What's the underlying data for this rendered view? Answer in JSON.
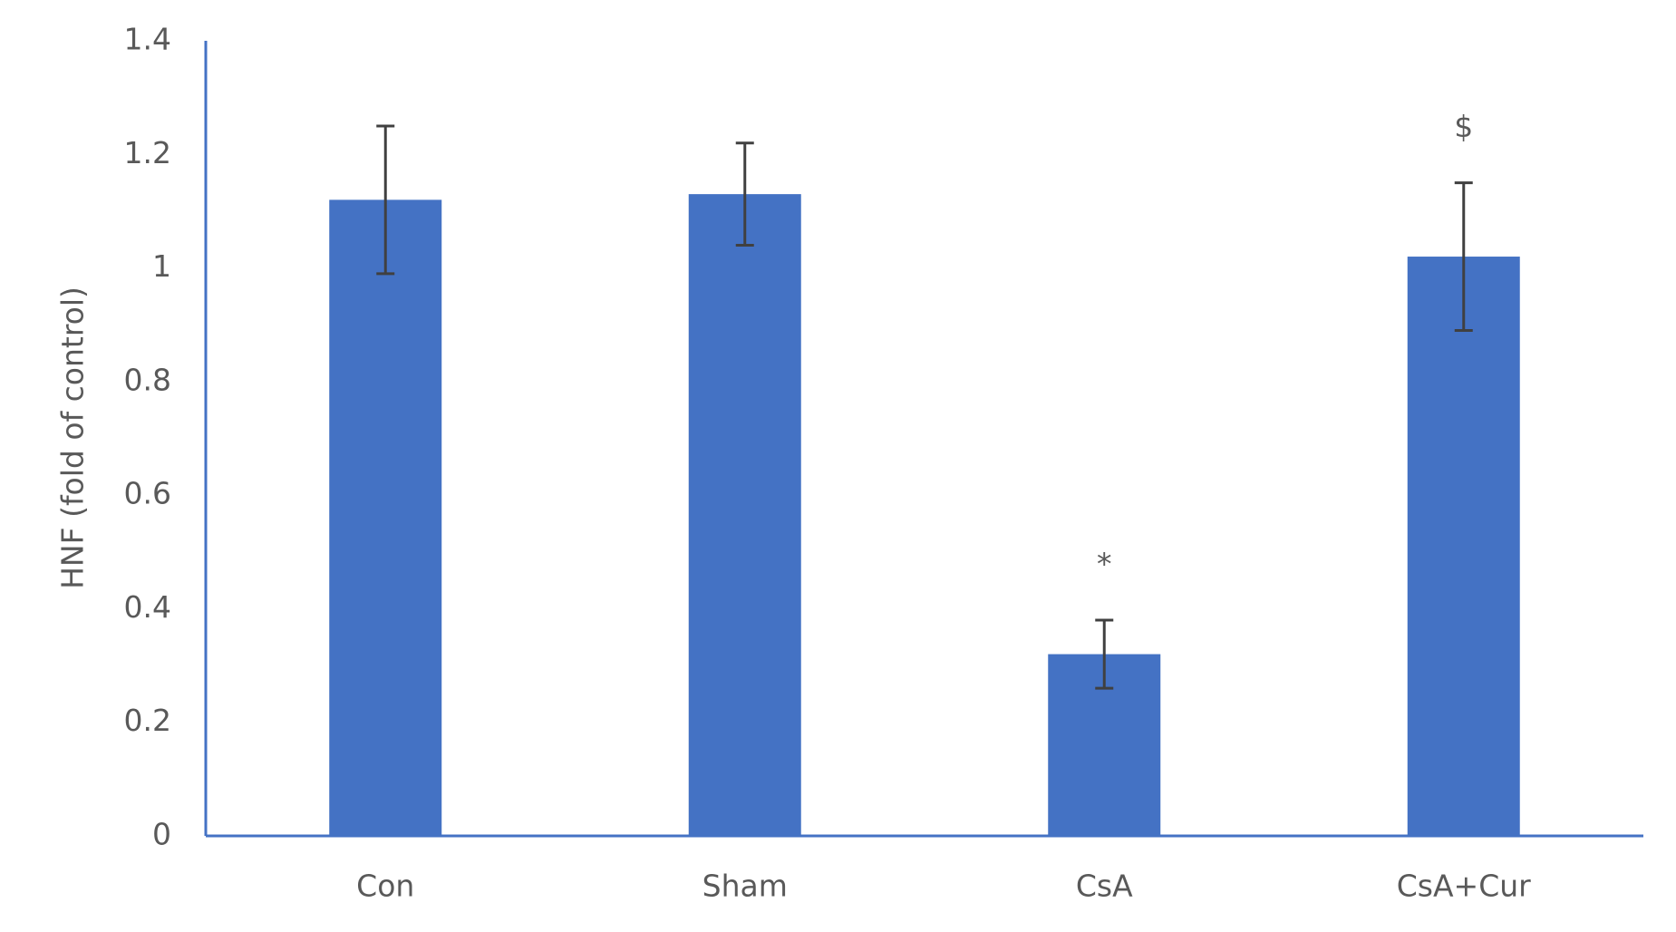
{
  "chart_data": {
    "type": "bar",
    "y_label": "HNF (fold of control)",
    "categories": [
      "Con",
      "Sham",
      "CsA",
      "CsA+Cur"
    ],
    "values": [
      1.12,
      1.13,
      0.32,
      1.02
    ],
    "errors": [
      0.13,
      0.09,
      0.06,
      0.13
    ],
    "annotations": [
      null,
      null,
      "*",
      "$"
    ],
    "color": "#4472c4",
    "error_color": "#404040",
    "ylim": [
      0,
      1.4
    ],
    "yticks": [
      0,
      0.2,
      0.4,
      0.6,
      0.8,
      1,
      1.2,
      1.4
    ],
    "grid": false
  }
}
